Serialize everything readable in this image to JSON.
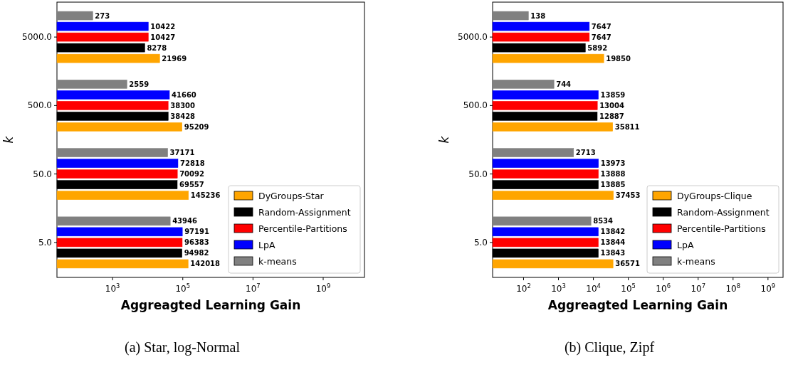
{
  "chart_data": [
    {
      "type": "bar",
      "orientation": "horizontal",
      "log": "x",
      "xlabel": "Aggreagted Learning Gain",
      "ylabel": "k",
      "categories": [
        "5000.0",
        "500.0",
        "50.0",
        "5.0"
      ],
      "xlim": [
        26,
        15000000000
      ],
      "xticks": [
        {
          "value": 1000,
          "label": "10$^{3}$"
        },
        {
          "value": 100000,
          "label": "10$^{5}$"
        },
        {
          "value": 10000000,
          "label": "10$^{7}$"
        },
        {
          "value": 1000000000,
          "label": "10$^{9}$"
        }
      ],
      "legend": "bottom right",
      "data_labels": true,
      "annotations": [
        "(a) Star, log-Normal"
      ],
      "series": [
        {
          "name": "DyGroups-Star",
          "color": "#ffa500",
          "values": [
            21969,
            95209,
            145236,
            142018
          ]
        },
        {
          "name": "Random-Assignment",
          "color": "#000000",
          "values": [
            8278,
            38428,
            69557,
            94982
          ]
        },
        {
          "name": "Percentile-Partitions",
          "color": "#ff0000",
          "values": [
            10427,
            38300,
            70092,
            96383
          ]
        },
        {
          "name": "LpA",
          "color": "#0000ff",
          "values": [
            10422,
            41660,
            72818,
            97191
          ]
        },
        {
          "name": "k-means",
          "color": "#808080",
          "values": [
            273,
            2559,
            37171,
            43946
          ]
        }
      ]
    },
    {
      "type": "bar",
      "orientation": "horizontal",
      "log": "x",
      "xlabel": "Aggreagted Learning Gain",
      "ylabel": "k",
      "categories": [
        "5000.0",
        "500.0",
        "50.0",
        "5.0"
      ],
      "xlim": [
        13,
        2700000000
      ],
      "xticks": [
        {
          "value": 100,
          "label": "10$^{2}$"
        },
        {
          "value": 1000,
          "label": "10$^{3}$"
        },
        {
          "value": 10000,
          "label": "10$^{4}$"
        },
        {
          "value": 100000,
          "label": "10$^{5}$"
        },
        {
          "value": 1000000,
          "label": "10$^{6}$"
        },
        {
          "value": 10000000,
          "label": "10$^{7}$"
        },
        {
          "value": 100000000,
          "label": "10$^{8}$"
        },
        {
          "value": 1000000000,
          "label": "10$^{9}$"
        }
      ],
      "legend": "bottom right",
      "data_labels": true,
      "annotations": [
        "(b) Clique, Zipf"
      ],
      "series": [
        {
          "name": "DyGroups-Clique",
          "color": "#ffa500",
          "values": [
            19850,
            35811,
            37453,
            36571
          ]
        },
        {
          "name": "Random-Assignment",
          "color": "#000000",
          "values": [
            5892,
            12887,
            13885,
            13843
          ]
        },
        {
          "name": "Percentile-Partitions",
          "color": "#ff0000",
          "values": [
            7647,
            13004,
            13888,
            13844
          ]
        },
        {
          "name": "LpA",
          "color": "#0000ff",
          "values": [
            7647,
            13859,
            13973,
            13842
          ]
        },
        {
          "name": "k-means",
          "color": "#808080",
          "values": [
            138,
            744,
            2713,
            8534
          ]
        }
      ]
    }
  ]
}
